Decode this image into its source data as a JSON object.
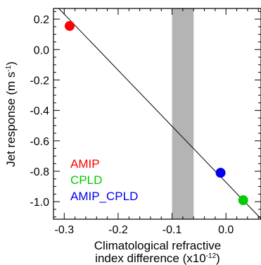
{
  "chart_data": {
    "type": "scatter",
    "xlabel_line1": "Climatological refractive",
    "xlabel_line2_base": "index difference (x10",
    "xlabel_line2_exp": "-12",
    "xlabel_line2_end": ")",
    "ylabel_base": "Jet response (m s",
    "ylabel_exp": "-1",
    "ylabel_end": ")",
    "xlim": [
      -0.32,
      0.065
    ],
    "ylim": [
      -1.115,
      0.27
    ],
    "xticks": [
      {
        "value": -0.3,
        "label": "-0.3"
      },
      {
        "value": -0.2,
        "label": "-0.2"
      },
      {
        "value": -0.1,
        "label": "-0.1"
      },
      {
        "value": 0.0,
        "label": "0.0"
      }
    ],
    "xminor": [
      -0.28,
      -0.26,
      -0.24,
      -0.22,
      -0.18,
      -0.16,
      -0.14,
      -0.12,
      -0.08,
      -0.06,
      -0.04,
      -0.02,
      0.02,
      0.04,
      0.06
    ],
    "yticks": [
      {
        "value": 0.2,
        "label": "0.2"
      },
      {
        "value": 0.0,
        "label": "0.0"
      },
      {
        "value": -0.2,
        "label": "-0.2"
      },
      {
        "value": -0.4,
        "label": "-0.4"
      },
      {
        "value": -0.6,
        "label": "-0.6"
      },
      {
        "value": -0.8,
        "label": "-0.8"
      },
      {
        "value": -1.0,
        "label": "-1.0"
      }
    ],
    "yminor": [
      0.25,
      0.15,
      0.1,
      0.05,
      -0.05,
      -0.1,
      -0.15,
      -0.25,
      -0.3,
      -0.35,
      -0.45,
      -0.5,
      -0.55,
      -0.65,
      -0.7,
      -0.75,
      -0.85,
      -0.9,
      -0.95,
      -1.05,
      -1.1
    ],
    "shaded_band": {
      "x0": -0.1,
      "x1": -0.06,
      "color": "#b4b4b4"
    },
    "fit_line": {
      "x0": -0.32,
      "y0": 0.306,
      "x1": 0.065,
      "y1": -1.112
    },
    "series": [
      {
        "name": "AMIP",
        "x": -0.29,
        "y": 0.155,
        "color": "#ff0000"
      },
      {
        "name": "CPLD",
        "x": 0.032,
        "y": -0.99,
        "color": "#00cc00"
      },
      {
        "name": "AMIP_CPLD",
        "x": -0.01,
        "y": -0.81,
        "color": "#0000ee"
      }
    ]
  }
}
